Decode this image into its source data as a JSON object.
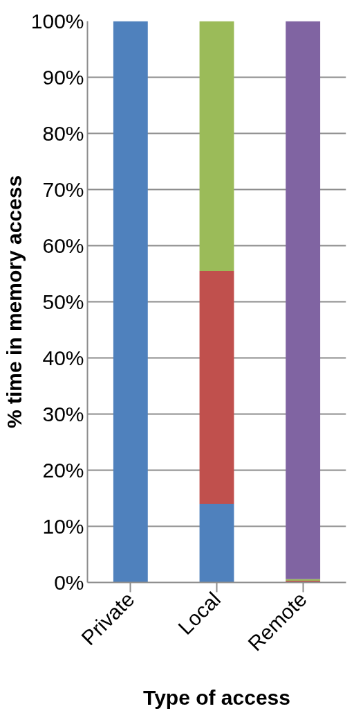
{
  "chart_data": {
    "type": "bar",
    "stacked": true,
    "xlabel": "Type of access",
    "ylabel": "% time in memory access",
    "categories": [
      "Private",
      "Local",
      "Remote"
    ],
    "series": [
      {
        "color": "#4f81bd",
        "values": [
          100,
          14,
          0
        ]
      },
      {
        "color": "#c0504d",
        "values": [
          0,
          41.5,
          0.3
        ]
      },
      {
        "color": "#9bbb59",
        "values": [
          0,
          44.5,
          0.3
        ]
      },
      {
        "color": "#8064a2",
        "values": [
          0,
          0,
          99.4
        ]
      }
    ],
    "ylim": [
      0,
      100
    ],
    "yticks": [
      {
        "value": 0,
        "label": "0%"
      },
      {
        "value": 10,
        "label": "10%"
      },
      {
        "value": 20,
        "label": "20%"
      },
      {
        "value": 30,
        "label": "30%"
      },
      {
        "value": 40,
        "label": "40%"
      },
      {
        "value": 50,
        "label": "50%"
      },
      {
        "value": 60,
        "label": "60%"
      },
      {
        "value": 70,
        "label": "70%"
      },
      {
        "value": 80,
        "label": "80%"
      },
      {
        "value": 90,
        "label": "90%"
      },
      {
        "value": 100,
        "label": "100%"
      }
    ],
    "grid": "y"
  }
}
